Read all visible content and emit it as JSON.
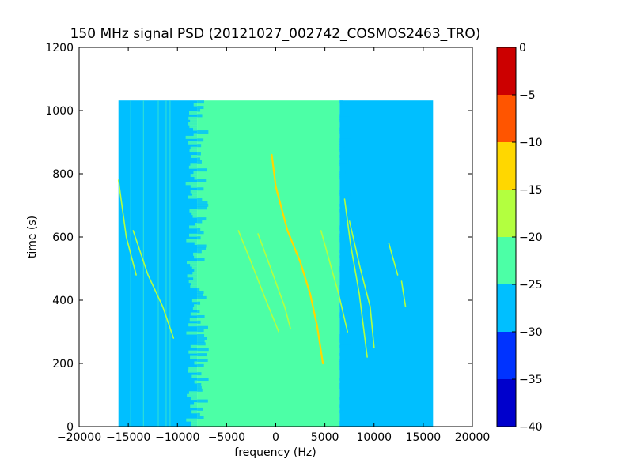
{
  "chart_data": {
    "type": "heatmap",
    "title": "150 MHz signal PSD (20121027_002742_COSMOS2463_TRO)",
    "xlabel": "frequency (Hz)",
    "ylabel": "time (s)",
    "xlim": [
      -20000,
      20000
    ],
    "ylim": [
      0,
      1200
    ],
    "xticks": [
      -20000,
      -15000,
      -10000,
      -5000,
      0,
      5000,
      10000,
      15000,
      20000
    ],
    "xtick_labels": [
      "−20000",
      "−15000",
      "−10000",
      "−5000",
      "0",
      "5000",
      "10000",
      "15000",
      "20000"
    ],
    "yticks": [
      0,
      200,
      400,
      600,
      800,
      1000,
      1200
    ],
    "ytick_labels": [
      "0",
      "200",
      "400",
      "600",
      "800",
      "1000",
      "1200"
    ],
    "data_extent": {
      "x": [
        -16000,
        16000
      ],
      "y": [
        0,
        1032
      ]
    },
    "background_bands": [
      {
        "x": [
          -16000,
          -8000
        ],
        "level": -27.5
      },
      {
        "x": [
          -8000,
          6500
        ],
        "level": -22.5
      },
      {
        "x": [
          6500,
          16000
        ],
        "level": -27.5
      }
    ],
    "traces": [
      {
        "points": [
          [
            -400,
            860
          ],
          [
            0,
            760
          ],
          [
            1200,
            620
          ],
          [
            2500,
            520
          ],
          [
            3500,
            420
          ],
          [
            4200,
            320
          ],
          [
            4800,
            200
          ]
        ],
        "level": -12.5
      },
      {
        "points": [
          [
            -3800,
            620
          ],
          [
            -2500,
            520
          ],
          [
            -1000,
            400
          ],
          [
            300,
            300
          ]
        ],
        "level": -17.5
      },
      {
        "points": [
          [
            -1800,
            610
          ],
          [
            -500,
            500
          ],
          [
            900,
            380
          ],
          [
            1500,
            310
          ]
        ],
        "level": -17.5
      },
      {
        "points": [
          [
            4600,
            620
          ],
          [
            5500,
            520
          ],
          [
            6400,
            420
          ],
          [
            7300,
            300
          ]
        ],
        "level": -17.5
      },
      {
        "points": [
          [
            7000,
            720
          ],
          [
            7600,
            580
          ],
          [
            8500,
            420
          ],
          [
            9300,
            220
          ]
        ],
        "level": -17.5
      },
      {
        "points": [
          [
            7500,
            650
          ],
          [
            8600,
            500
          ],
          [
            9600,
            380
          ],
          [
            10000,
            250
          ]
        ],
        "level": -17.5
      },
      {
        "points": [
          [
            -16000,
            780
          ],
          [
            -15200,
            600
          ],
          [
            -14200,
            480
          ]
        ],
        "level": -17.5
      },
      {
        "points": [
          [
            -14500,
            620
          ],
          [
            -13000,
            480
          ],
          [
            -11500,
            380
          ],
          [
            -10400,
            280
          ]
        ],
        "level": -17.5
      },
      {
        "points": [
          [
            11500,
            580
          ],
          [
            12400,
            480
          ]
        ],
        "level": -17.5
      },
      {
        "points": [
          [
            12800,
            460
          ],
          [
            13200,
            380
          ]
        ],
        "level": -17.5
      }
    ],
    "colorbar": {
      "levels": [
        -40,
        -35,
        -30,
        -25,
        -20,
        -15,
        -10,
        -5,
        0
      ],
      "tick_labels": [
        "−40",
        "−35",
        "−30",
        "−25",
        "−20",
        "−15",
        "−10",
        "−5",
        "0"
      ],
      "colors": [
        "#0000cc",
        "#0033ff",
        "#00bfff",
        "#4cffa6",
        "#b3ff3f",
        "#ffd700",
        "#ff5500",
        "#cc0000"
      ]
    }
  }
}
